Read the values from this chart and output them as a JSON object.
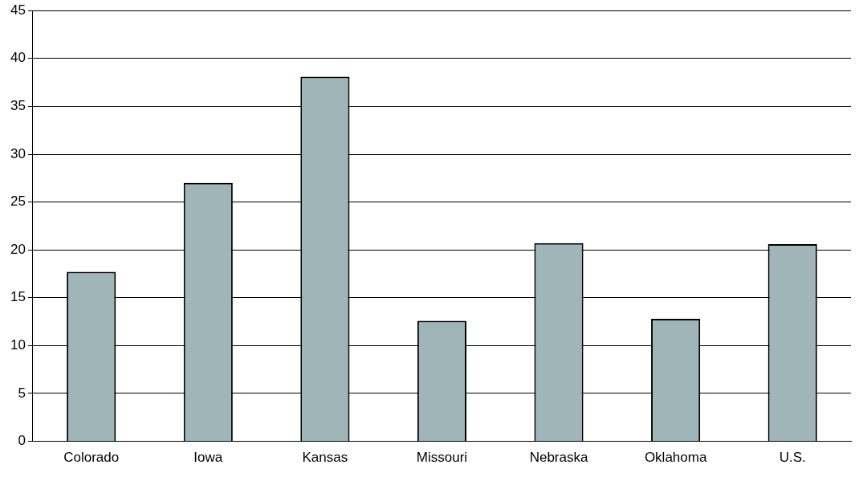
{
  "chart_data": {
    "type": "bar",
    "categories": [
      "Colorado",
      "Iowa",
      "Kansas",
      "Missouri",
      "Nebraska",
      "Oklahoma",
      "U.S."
    ],
    "values": [
      17.7,
      27,
      38.1,
      12.6,
      20.7,
      12.8,
      20.6
    ],
    "color": "#9fb5b8",
    "ylim": [
      0,
      45
    ],
    "yticks": [
      0,
      5,
      10,
      15,
      20,
      25,
      30,
      35,
      40,
      45
    ],
    "grid": "y",
    "legend": false
  }
}
